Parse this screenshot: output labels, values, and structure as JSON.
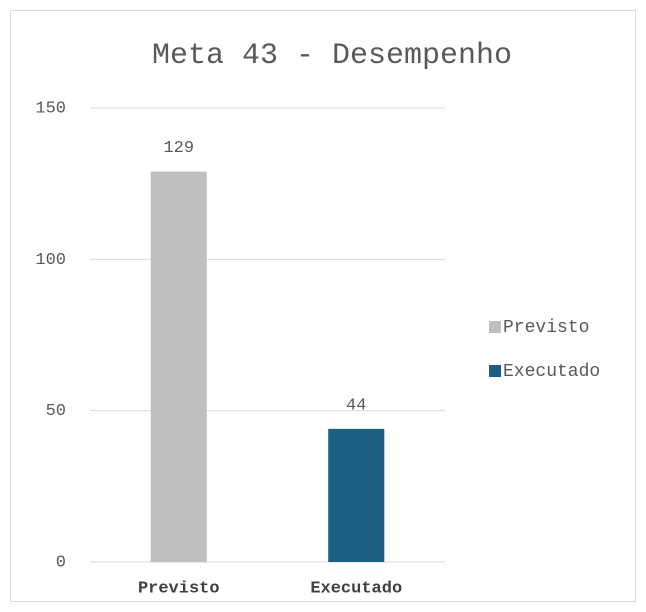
{
  "chart_data": {
    "type": "bar",
    "title": "Meta 43 - Desempenho",
    "categories": [
      "Previsto",
      "Executado"
    ],
    "values": [
      129,
      44
    ],
    "colors": [
      "#bfbfbf",
      "#1b5f82"
    ],
    "ylim": [
      0,
      150
    ],
    "yticks": [
      0,
      50,
      100,
      150
    ],
    "grid": true,
    "legend": "right"
  }
}
